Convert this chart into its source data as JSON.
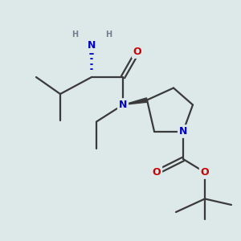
{
  "bg_color": "#dde8e8",
  "atom_colors": {
    "C": "#3a3a3a",
    "N": "#0000cc",
    "O": "#cc0000",
    "H": "#708090"
  },
  "bond_color": "#3a3a3a",
  "figsize": [
    3.0,
    3.0
  ],
  "dpi": 100,
  "xlim": [
    0,
    10
  ],
  "ylim": [
    0,
    10
  ]
}
